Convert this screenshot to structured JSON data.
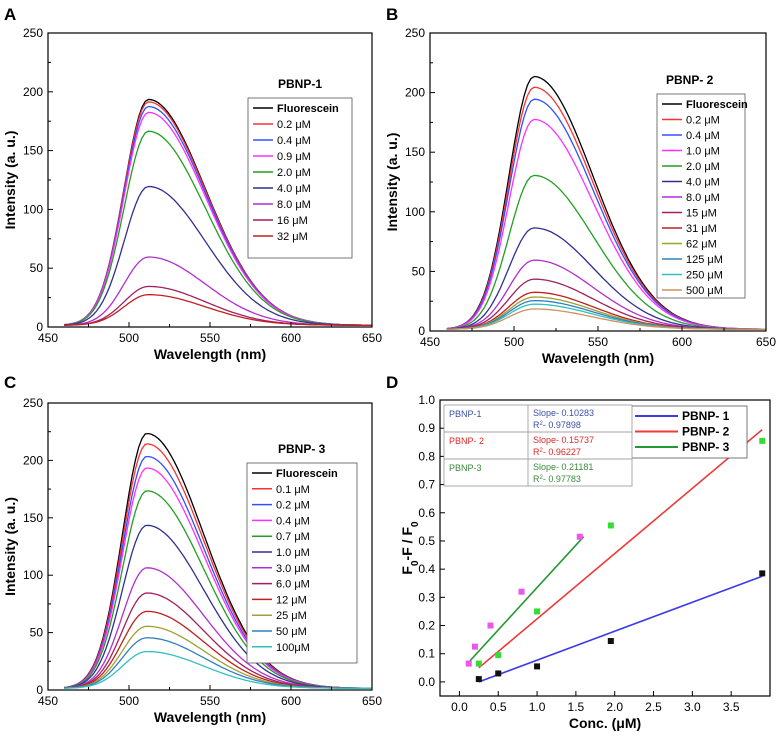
{
  "chart_data": [
    {
      "panel": "A",
      "type": "line",
      "title": "PBNP-1",
      "xlabel": "Wavelength (nm)",
      "ylabel": "Intensity (a. u.)",
      "xlim": [
        450,
        650
      ],
      "ylim": [
        0,
        250
      ],
      "xticks": [
        "450",
        "500",
        "550",
        "600",
        "650"
      ],
      "yticks": [
        "0",
        "50",
        "100",
        "150",
        "200",
        "250"
      ],
      "peak_x": 512,
      "series": [
        {
          "name": "Fluorescein",
          "color": "#000000",
          "peak": 192
        },
        {
          "name": "0.2 μM",
          "color": "#ff3030",
          "peak": 190
        },
        {
          "name": "0.4 μM",
          "color": "#3050ff",
          "peak": 186
        },
        {
          "name": "0.9 μM",
          "color": "#ff30ff",
          "peak": 181
        },
        {
          "name": "2.0 μM",
          "color": "#20a020",
          "peak": 165
        },
        {
          "name": "4.0 μM",
          "color": "#303090",
          "peak": 118
        },
        {
          "name": "8.0 μM",
          "color": "#b030d0",
          "peak": 58
        },
        {
          "name": "16 μM",
          "color": "#a02060",
          "peak": 33
        },
        {
          "name": "32 μM",
          "color": "#c02020",
          "peak": 26
        }
      ]
    },
    {
      "panel": "B",
      "type": "line",
      "title": "PBNP- 2",
      "xlabel": "Wavelength (nm)",
      "ylabel": "Intensity (a. u.)",
      "xlim": [
        450,
        650
      ],
      "ylim": [
        0,
        250
      ],
      "xticks": [
        "450",
        "500",
        "550",
        "600",
        "650"
      ],
      "yticks": [
        "0",
        "50",
        "100",
        "150",
        "200",
        "250"
      ],
      "peak_x": 512,
      "series": [
        {
          "name": "Fluorescein",
          "color": "#000000",
          "peak": 212
        },
        {
          "name": "0.2 μM",
          "color": "#ff3030",
          "peak": 203
        },
        {
          "name": "0.4 μM",
          "color": "#3050ff",
          "peak": 193
        },
        {
          "name": "1.0 μM",
          "color": "#ff30ff",
          "peak": 176
        },
        {
          "name": "2.0 μM",
          "color": "#20a020",
          "peak": 129
        },
        {
          "name": "4.0 μM",
          "color": "#303090",
          "peak": 85
        },
        {
          "name": "8.0 μM",
          "color": "#b030d0",
          "peak": 58
        },
        {
          "name": "15 μM",
          "color": "#a02060",
          "peak": 42
        },
        {
          "name": "31 μM",
          "color": "#c02020",
          "peak": 31
        },
        {
          "name": "62 μM",
          "color": "#a0a030",
          "peak": 27
        },
        {
          "name": "125 μM",
          "color": "#3080c0",
          "peak": 24
        },
        {
          "name": "250 μM",
          "color": "#30c0c0",
          "peak": 21
        },
        {
          "name": "500 μM",
          "color": "#d09060",
          "peak": 17
        }
      ]
    },
    {
      "panel": "C",
      "type": "line",
      "title": "PBNP- 3",
      "xlabel": "Wavelength (nm)",
      "ylabel": "Intensity (a. u.)",
      "xlim": [
        450,
        650
      ],
      "ylim": [
        0,
        250
      ],
      "xticks": [
        "450",
        "500",
        "550",
        "600",
        "650"
      ],
      "yticks": [
        "0",
        "50",
        "100",
        "150",
        "200",
        "250"
      ],
      "peak_x": 511,
      "series": [
        {
          "name": "Fluorescein",
          "color": "#000000",
          "peak": 222
        },
        {
          "name": "0.1 μM",
          "color": "#ff3030",
          "peak": 213
        },
        {
          "name": "0.2 μM",
          "color": "#3050ff",
          "peak": 202
        },
        {
          "name": "0.4 μM",
          "color": "#ff30ff",
          "peak": 192
        },
        {
          "name": "0.7 μM",
          "color": "#20a020",
          "peak": 172
        },
        {
          "name": "1.0 μM",
          "color": "#303090",
          "peak": 142
        },
        {
          "name": "3.0 μM",
          "color": "#b030d0",
          "peak": 105
        },
        {
          "name": "6.0 μM",
          "color": "#a02060",
          "peak": 83
        },
        {
          "name": "12 μM",
          "color": "#c02020",
          "peak": 67
        },
        {
          "name": "25 μM",
          "color": "#a0a030",
          "peak": 54
        },
        {
          "name": "50 μM",
          "color": "#3080c0",
          "peak": 44
        },
        {
          "name": "100μM",
          "color": "#30c0c0",
          "peak": 32
        }
      ]
    },
    {
      "panel": "D",
      "type": "scatter",
      "xlabel": "Conc. (μM)",
      "ylabel_main": "F",
      "ylabel_sub1": "0",
      "ylabel_mid": "-F / F",
      "ylabel_sub2": "0",
      "xlim": [
        -0.25,
        4.0
      ],
      "ylim": [
        -0.05,
        1.0
      ],
      "xticks": [
        {
          "v": 0.0,
          "label": "0.0"
        },
        {
          "v": 0.5,
          "label": "0.5"
        },
        {
          "v": 1.0,
          "label": "1.0"
        },
        {
          "v": 1.5,
          "label": "1.5"
        },
        {
          "v": 2.0,
          "label": "2.0"
        },
        {
          "v": 2.5,
          "label": "2.5"
        },
        {
          "v": 3.0,
          "label": "3.0"
        },
        {
          "v": 3.5,
          "label": "3.5"
        }
      ],
      "yticks": [
        {
          "v": 0.0,
          "label": "0.0"
        },
        {
          "v": 0.1,
          "label": "0.1"
        },
        {
          "v": 0.2,
          "label": "0.2"
        },
        {
          "v": 0.3,
          "label": "0.3"
        },
        {
          "v": 0.4,
          "label": "0.4"
        },
        {
          "v": 0.5,
          "label": "0.5"
        },
        {
          "v": 0.6,
          "label": "0.6"
        },
        {
          "v": 0.7,
          "label": "0.7"
        },
        {
          "v": 0.8,
          "label": "0.8"
        },
        {
          "v": 0.9,
          "label": "0.9"
        },
        {
          "v": 1.0,
          "label": "1.0"
        }
      ],
      "series": [
        {
          "name": "PBNP- 1",
          "line_color": "#3a3ae8",
          "point_color": "#111111",
          "points": [
            [
              0.25,
              0.01
            ],
            [
              0.5,
              0.03
            ],
            [
              1.0,
              0.055
            ],
            [
              1.95,
              0.145
            ],
            [
              3.9,
              0.385
            ]
          ],
          "fit": [
            [
              0.25,
              0.0
            ],
            [
              3.9,
              0.375
            ]
          ]
        },
        {
          "name": "PBNP- 2",
          "line_color": "#ee3a3a",
          "point_color": "#33dd33",
          "points": [
            [
              0.25,
              0.065
            ],
            [
              0.5,
              0.095
            ],
            [
              1.0,
              0.25
            ],
            [
              1.95,
              0.555
            ],
            [
              3.9,
              0.855
            ]
          ],
          "fit": [
            [
              0.25,
              0.05
            ],
            [
              3.9,
              0.895
            ]
          ]
        },
        {
          "name": "PBNP- 3",
          "line_color": "#229a33",
          "point_color": "#ee55ee",
          "points": [
            [
              0.12,
              0.065
            ],
            [
              0.2,
              0.125
            ],
            [
              0.4,
              0.2
            ],
            [
              0.8,
              0.32
            ],
            [
              1.55,
              0.515
            ]
          ],
          "fit": [
            [
              0.12,
              0.07
            ],
            [
              1.6,
              0.515
            ]
          ]
        }
      ],
      "fit_table": [
        {
          "name": "PBNP-1",
          "slope": "Slope- 0.10283",
          "r2_prefix": "R",
          "r2_sup": "2",
          "r2_value": "- 0.97898",
          "color": "#3a4fa8"
        },
        {
          "name": "PBNP- 2",
          "slope": "Slope- 0.15737",
          "r2_prefix": "R",
          "r2_sup": "2",
          "r2_value": "- 0.96227",
          "color": "#e02828"
        },
        {
          "name": "PBNP-3",
          "slope": "Slope- 0.21181",
          "r2_prefix": "R",
          "r2_sup": "2",
          "r2_value": "- 0.97783",
          "color": "#3a8a3a"
        }
      ]
    }
  ]
}
